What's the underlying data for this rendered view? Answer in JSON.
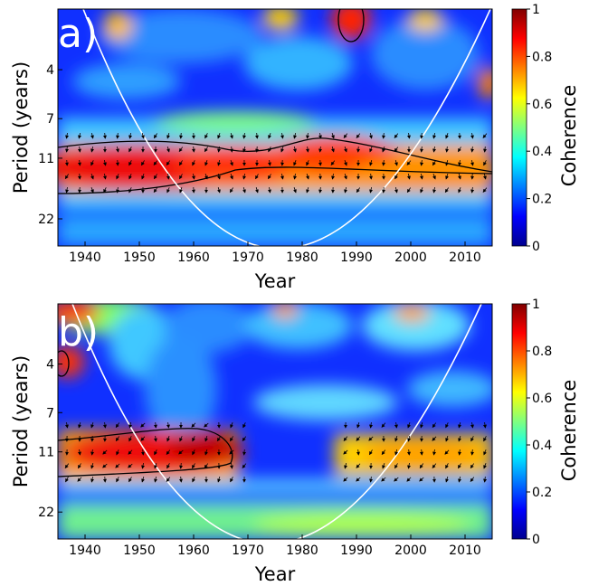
{
  "chart_data": [
    {
      "type": "heatmap",
      "panel_label": "(a)",
      "xlabel": "Year",
      "ylabel": "Period (years)",
      "colorbar_label": "Coherence",
      "x_ticks": [
        1940,
        1950,
        1960,
        1970,
        1980,
        1990,
        2000,
        2010
      ],
      "y_ticks": [
        4,
        7,
        11,
        22
      ],
      "xlim": [
        1935,
        2015
      ],
      "ylim_period": [
        2,
        30
      ],
      "y_scale": "log",
      "colorbar_ticks": [
        0,
        0.2,
        0.4,
        0.6,
        0.8,
        1
      ],
      "colorbar_range": [
        0,
        1
      ],
      "colormap": "jet",
      "cone_of_influence": {
        "color": "#ffffff",
        "minimum_year": 1975
      },
      "significance_contours": [
        {
          "region": "high-coherence band",
          "years": [
            1935,
            2015
          ],
          "period_range": [
            9,
            14
          ]
        },
        {
          "region": "small island",
          "year_center": 1989,
          "period_range": [
            2,
            3
          ]
        }
      ],
      "high_coherence_regions": [
        {
          "year_center": 1948,
          "period_center": 11.5,
          "value": 0.95
        },
        {
          "year_center": 1983,
          "period_center": 10.5,
          "value": 0.9
        },
        {
          "year_center": 2005,
          "period_center": 11.5,
          "value": 0.75
        },
        {
          "year_center": 1989,
          "period_center": 2.3,
          "value": 0.9
        }
      ]
    },
    {
      "type": "heatmap",
      "panel_label": "(b)",
      "xlabel": "Year",
      "ylabel": "Period (years)",
      "colorbar_label": "Coherence",
      "x_ticks": [
        1940,
        1950,
        1960,
        1970,
        1980,
        1990,
        2000,
        2010
      ],
      "y_ticks": [
        4,
        7,
        11,
        22
      ],
      "xlim": [
        1935,
        2015
      ],
      "ylim_period": [
        2,
        30
      ],
      "y_scale": "log",
      "colorbar_ticks": [
        0,
        0.2,
        0.4,
        0.6,
        0.8,
        1
      ],
      "colorbar_range": [
        0,
        1
      ],
      "colormap": "jet",
      "cone_of_influence": {
        "color": "#ffffff",
        "minimum_year": 1975
      },
      "significance_contours": [
        {
          "region": "high-coherence band",
          "years": [
            1935,
            1965
          ],
          "period_range": [
            9,
            13
          ]
        },
        {
          "region": "small island",
          "year_center": 1936,
          "period_center": 4
        }
      ],
      "high_coherence_regions": [
        {
          "year_center": 1958,
          "period_center": 10.5,
          "value": 0.95
        },
        {
          "year_center": 1945,
          "period_center": 11.5,
          "value": 0.85
        },
        {
          "year_center": 2000,
          "period_center": 11,
          "value": 0.65
        },
        {
          "year_center": 1936,
          "period_center": 4,
          "value": 0.9
        }
      ]
    }
  ]
}
